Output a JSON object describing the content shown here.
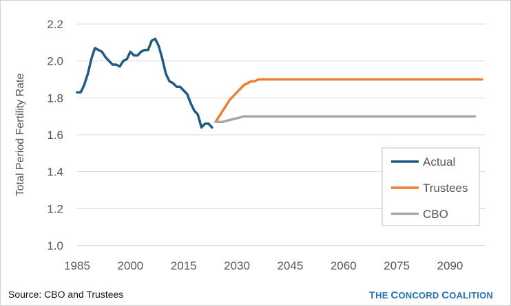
{
  "chart_data": {
    "type": "line",
    "title": "",
    "xlabel": "",
    "ylabel": "Total Period Fertility Rate",
    "xlim": [
      1985,
      2100
    ],
    "ylim": [
      1.0,
      2.2
    ],
    "x_ticks": [
      "1985",
      "2000",
      "2015",
      "2030",
      "2045",
      "2060",
      "2075",
      "2090"
    ],
    "y_ticks": [
      "1.0",
      "1.2",
      "1.4",
      "1.6",
      "1.8",
      "2.0",
      "2.2"
    ],
    "grid": "horizontal",
    "legend_position": "right",
    "series": [
      {
        "name": "Actual",
        "color": "#1d5b83",
        "points": [
          [
            1985,
            1.83
          ],
          [
            1986,
            1.83
          ],
          [
            1987,
            1.87
          ],
          [
            1988,
            1.93
          ],
          [
            1989,
            2.01
          ],
          [
            1990,
            2.07
          ],
          [
            1991,
            2.06
          ],
          [
            1992,
            2.05
          ],
          [
            1993,
            2.02
          ],
          [
            1994,
            2.0
          ],
          [
            1995,
            1.98
          ],
          [
            1996,
            1.98
          ],
          [
            1997,
            1.97
          ],
          [
            1998,
            2.0
          ],
          [
            1999,
            2.01
          ],
          [
            2000,
            2.05
          ],
          [
            2001,
            2.03
          ],
          [
            2002,
            2.03
          ],
          [
            2003,
            2.05
          ],
          [
            2004,
            2.06
          ],
          [
            2005,
            2.06
          ],
          [
            2006,
            2.11
          ],
          [
            2007,
            2.12
          ],
          [
            2008,
            2.08
          ],
          [
            2009,
            2.01
          ],
          [
            2010,
            1.93
          ],
          [
            2011,
            1.89
          ],
          [
            2012,
            1.88
          ],
          [
            2013,
            1.86
          ],
          [
            2014,
            1.86
          ],
          [
            2015,
            1.84
          ],
          [
            2016,
            1.82
          ],
          [
            2017,
            1.77
          ],
          [
            2018,
            1.73
          ],
          [
            2019,
            1.71
          ],
          [
            2020,
            1.64
          ],
          [
            2021,
            1.66
          ],
          [
            2022,
            1.66
          ],
          [
            2023,
            1.64
          ]
        ]
      },
      {
        "name": "Trustees",
        "color": "#ed7d31",
        "points": [
          [
            2024,
            1.67
          ],
          [
            2025,
            1.7
          ],
          [
            2026,
            1.73
          ],
          [
            2027,
            1.76
          ],
          [
            2028,
            1.79
          ],
          [
            2029,
            1.81
          ],
          [
            2030,
            1.83
          ],
          [
            2031,
            1.85
          ],
          [
            2032,
            1.87
          ],
          [
            2033,
            1.88
          ],
          [
            2034,
            1.89
          ],
          [
            2035,
            1.89
          ],
          [
            2036,
            1.9
          ],
          [
            2037,
            1.9
          ],
          [
            2040,
            1.9
          ],
          [
            2060,
            1.9
          ],
          [
            2080,
            1.9
          ],
          [
            2099,
            1.9
          ]
        ]
      },
      {
        "name": "CBO",
        "color": "#a6a6a6",
        "points": [
          [
            2024,
            1.67
          ],
          [
            2026,
            1.67
          ],
          [
            2028,
            1.68
          ],
          [
            2030,
            1.69
          ],
          [
            2032,
            1.7
          ],
          [
            2034,
            1.7
          ],
          [
            2040,
            1.7
          ],
          [
            2060,
            1.7
          ],
          [
            2080,
            1.7
          ],
          [
            2097,
            1.7
          ]
        ]
      }
    ]
  },
  "footer": {
    "source": "Source: CBO and Trustees",
    "brand_the": "T",
    "brand_the_rest": "HE ",
    "brand_c1": "C",
    "brand_c1_rest": "ONCORD ",
    "brand_c2": "C",
    "brand_c2_rest": "OALITION"
  }
}
